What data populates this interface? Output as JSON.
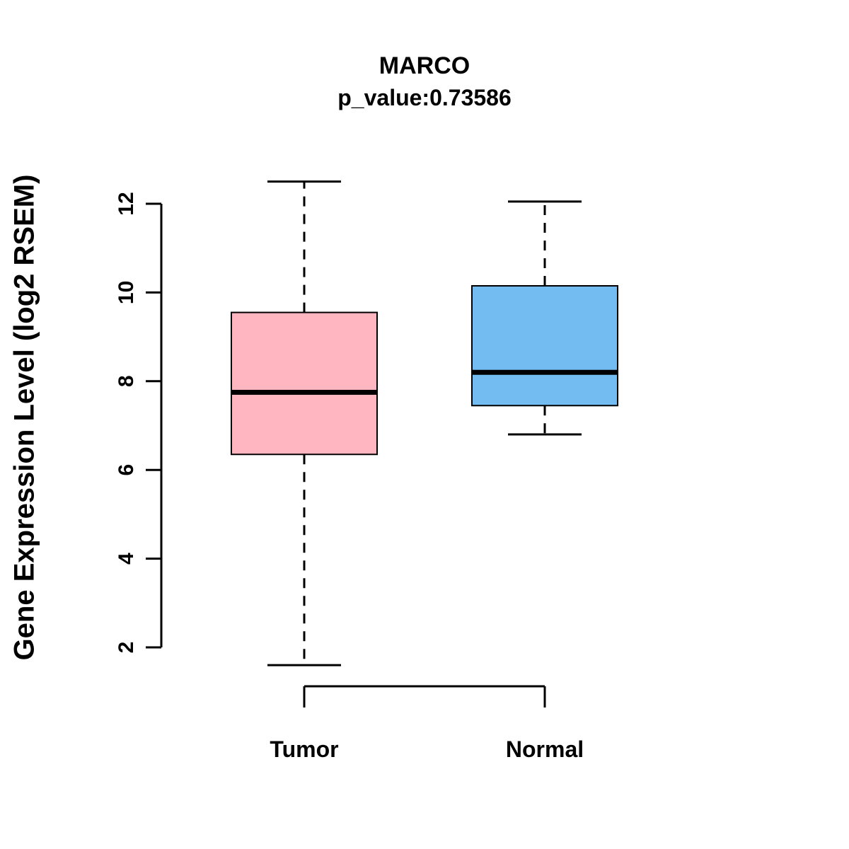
{
  "chart_data": {
    "type": "boxplot",
    "title": "MARCO",
    "subtitle": "p_value:0.73586",
    "ylabel": "Gene Expression Level (log2 RSEM)",
    "xlabel": "",
    "ylim": [
      2,
      12
    ],
    "yticks": [
      2,
      4,
      6,
      8,
      10,
      12
    ],
    "grid": false,
    "legend": "none",
    "groups": [
      {
        "label": "Tumor",
        "color": "#FFB6C1",
        "whisker_low": 1.6,
        "q1": 6.35,
        "median": 7.75,
        "q3": 9.55,
        "whisker_high": 12.5
      },
      {
        "label": "Normal",
        "color": "#73BCF2",
        "whisker_low": 6.8,
        "q1": 7.45,
        "median": 8.2,
        "q3": 10.15,
        "whisker_high": 12.05
      }
    ]
  }
}
